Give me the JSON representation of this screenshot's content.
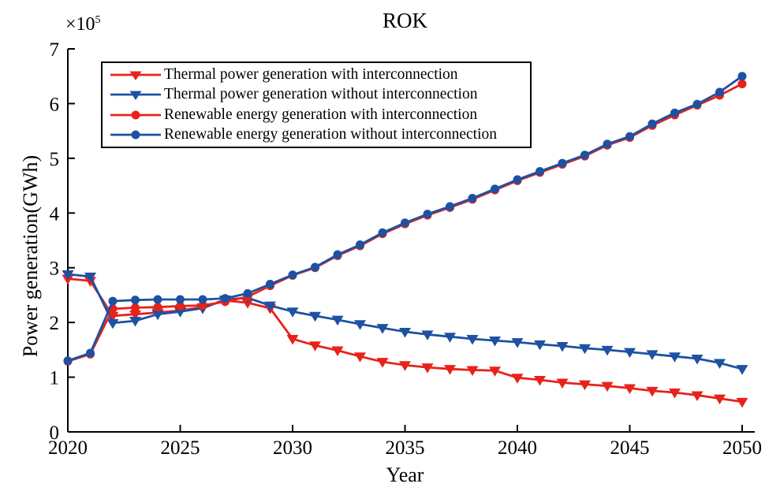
{
  "chart_data": {
    "type": "line",
    "title": "ROK",
    "xlabel": "Year",
    "ylabel": "Power generation(GWh)",
    "y_multiplier_base": "×10",
    "y_multiplier_exp": "5",
    "xlim": [
      2020,
      2050
    ],
    "ylim": [
      0,
      7
    ],
    "x_ticks": [
      2020,
      2025,
      2030,
      2035,
      2040,
      2045,
      2050
    ],
    "y_ticks": [
      0,
      1,
      2,
      3,
      4,
      5,
      6,
      7
    ],
    "grid": false,
    "legend_position": "top-left",
    "axis_color": "#000000",
    "x": [
      2020,
      2021,
      2022,
      2023,
      2024,
      2025,
      2026,
      2027,
      2028,
      2029,
      2030,
      2031,
      2032,
      2033,
      2034,
      2035,
      2036,
      2037,
      2038,
      2039,
      2040,
      2041,
      2042,
      2043,
      2044,
      2045,
      2046,
      2047,
      2048,
      2049,
      2050
    ],
    "series": [
      {
        "name": "Thermal power generation with interconnection",
        "color": "#e8221b",
        "marker": "triangle-down",
        "values": [
          2.8,
          2.76,
          2.12,
          2.15,
          2.18,
          2.22,
          2.28,
          2.4,
          2.36,
          2.26,
          1.7,
          1.58,
          1.49,
          1.38,
          1.28,
          1.22,
          1.18,
          1.15,
          1.13,
          1.12,
          0.99,
          0.95,
          0.9,
          0.87,
          0.84,
          0.8,
          0.75,
          0.72,
          0.67,
          0.61,
          0.55
        ]
      },
      {
        "name": "Thermal power generation without interconnection",
        "color": "#1e51a2",
        "marker": "triangle-down",
        "values": [
          2.88,
          2.84,
          1.99,
          2.03,
          2.15,
          2.2,
          2.26,
          2.42,
          2.45,
          2.31,
          2.2,
          2.12,
          2.05,
          1.97,
          1.9,
          1.83,
          1.78,
          1.74,
          1.7,
          1.67,
          1.64,
          1.6,
          1.57,
          1.53,
          1.5,
          1.46,
          1.42,
          1.38,
          1.34,
          1.26,
          1.15
        ]
      },
      {
        "name": "Renewable energy generation with interconnection",
        "color": "#e8221b",
        "marker": "circle",
        "values": [
          1.29,
          1.42,
          2.25,
          2.27,
          2.28,
          2.3,
          2.31,
          2.38,
          2.47,
          2.67,
          2.86,
          3.0,
          3.22,
          3.4,
          3.62,
          3.8,
          3.96,
          4.1,
          4.25,
          4.42,
          4.59,
          4.74,
          4.89,
          5.04,
          5.24,
          5.38,
          5.6,
          5.79,
          5.97,
          6.15,
          6.36
        ]
      },
      {
        "name": "Renewable energy generation without interconnection",
        "color": "#1e51a2",
        "marker": "circle",
        "values": [
          1.3,
          1.44,
          2.39,
          2.41,
          2.42,
          2.42,
          2.42,
          2.44,
          2.53,
          2.7,
          2.87,
          3.01,
          3.24,
          3.42,
          3.64,
          3.82,
          3.98,
          4.12,
          4.27,
          4.44,
          4.61,
          4.76,
          4.91,
          5.06,
          5.26,
          5.4,
          5.63,
          5.83,
          5.99,
          6.21,
          6.5
        ]
      }
    ]
  }
}
